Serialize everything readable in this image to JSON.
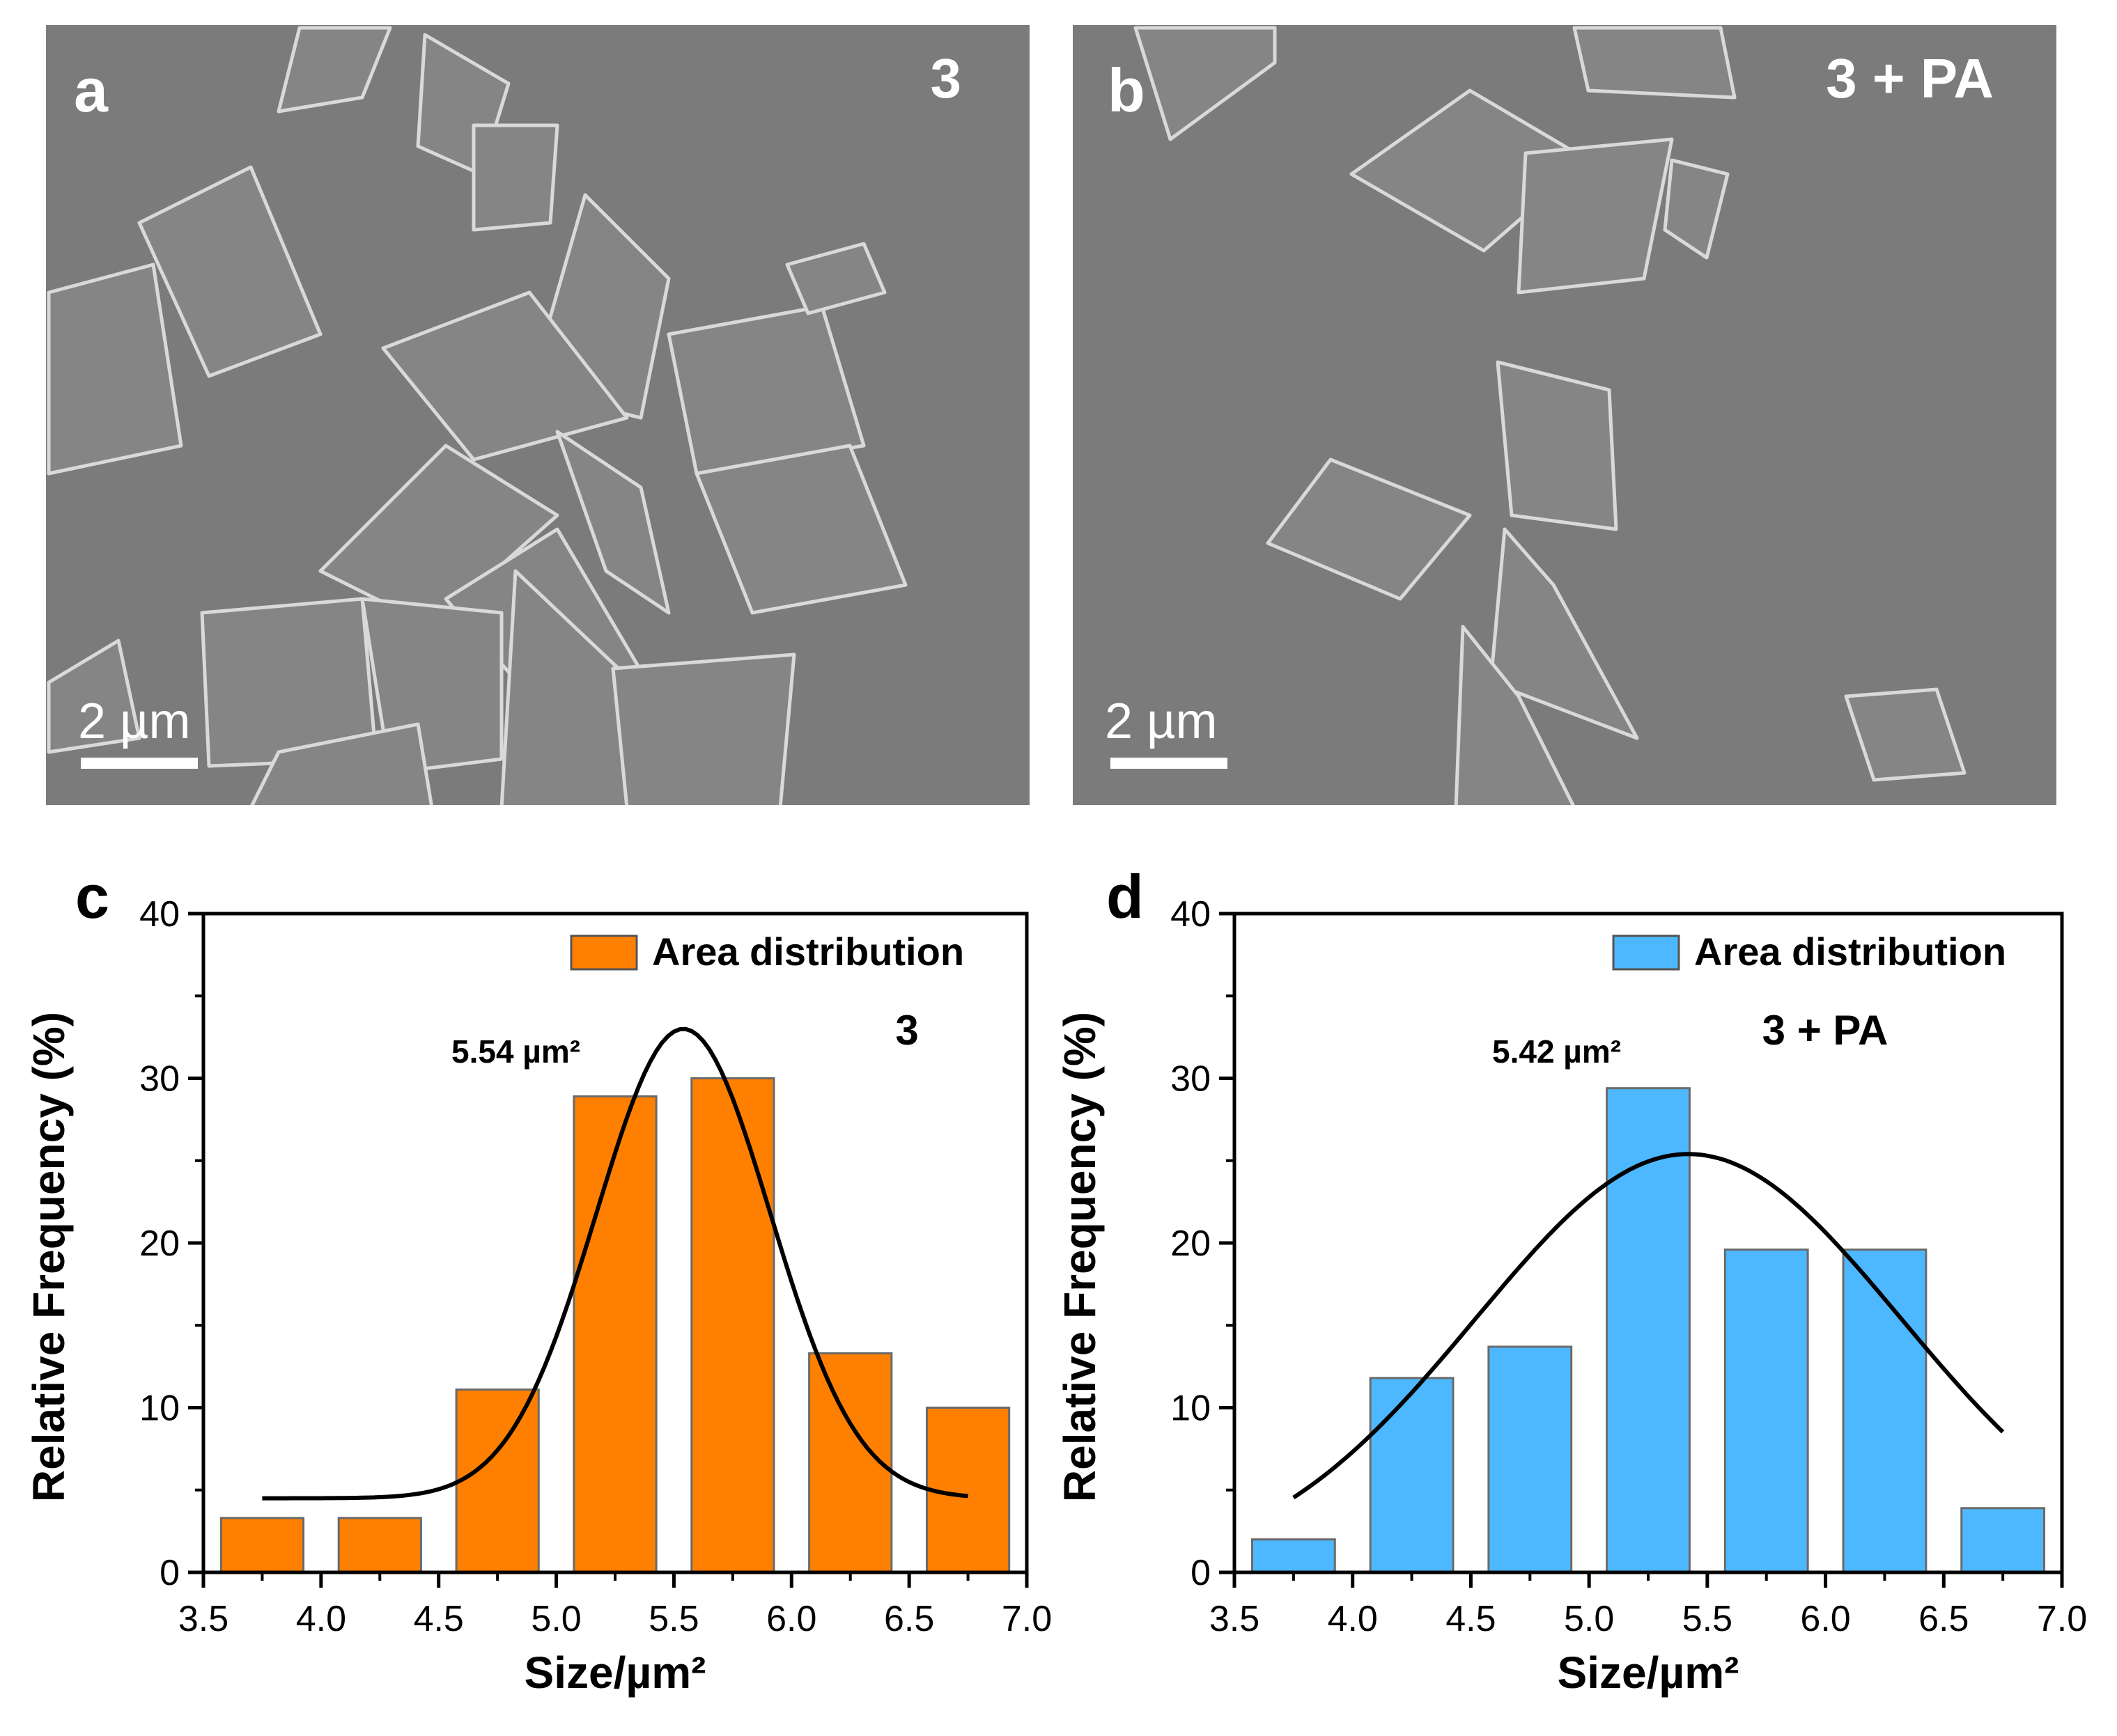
{
  "panels": {
    "a": {
      "letter": "a",
      "sample": "3",
      "scale_bar": "2 µm"
    },
    "b": {
      "letter": "b",
      "sample": "3 + PA",
      "scale_bar": "2 µm"
    }
  },
  "colors": {
    "sem_background": "#7b7b7b",
    "sem_crystal": "#858585",
    "sem_edge": "#d9d9d9",
    "bar_c": "#ff8000",
    "bar_d": "#4db8ff",
    "curve": "#000000"
  },
  "chart_data": [
    {
      "panel": "c",
      "type": "bar",
      "sample_label": "3",
      "legend": "Area distribution",
      "legend_position": "top-right",
      "xlabel": "Size/µm²",
      "ylabel": "Relative Frequency (%)",
      "xlim": [
        3.5,
        7.0
      ],
      "ylim": [
        0,
        40
      ],
      "xticks": [
        "3.5",
        "4.0",
        "4.5",
        "5.0",
        "5.5",
        "6.0",
        "6.5",
        "7.0"
      ],
      "yticks": [
        "0",
        "10",
        "20",
        "30",
        "40"
      ],
      "grid": false,
      "bin_width": 0.5,
      "bins": [
        3.75,
        4.25,
        4.75,
        5.25,
        5.75,
        6.25,
        6.75
      ],
      "values": [
        3.3,
        3.3,
        11.1,
        28.9,
        30.0,
        13.3,
        10.0
      ],
      "fit": {
        "type": "gaussian",
        "peak_label": "5.54 µm²",
        "center": 5.54,
        "amplitude": 28.5,
        "sigma": 0.37,
        "offset": 4.5,
        "x_range": [
          3.75,
          6.75
        ]
      }
    },
    {
      "panel": "d",
      "type": "bar",
      "sample_label": "3 + PA",
      "legend": "Area distribution",
      "legend_position": "top-right",
      "xlabel": "Size/µm²",
      "ylabel": "Relative Frequency (%)",
      "xlim": [
        3.5,
        7.0
      ],
      "ylim": [
        0,
        40
      ],
      "xticks": [
        "3.5",
        "4.0",
        "4.5",
        "5.0",
        "5.5",
        "6.0",
        "6.5",
        "7.0"
      ],
      "yticks": [
        "0",
        "10",
        "20",
        "30",
        "40"
      ],
      "grid": false,
      "bin_width": 0.5,
      "bins": [
        3.75,
        4.25,
        4.75,
        5.25,
        5.75,
        6.25,
        6.75
      ],
      "values": [
        2.0,
        11.8,
        13.7,
        29.4,
        19.6,
        19.6,
        3.9
      ],
      "fit": {
        "type": "gaussian",
        "peak_label": "5.42 µm²",
        "center": 5.42,
        "amplitude": 25.4,
        "sigma": 0.9,
        "offset": 0,
        "x_range": [
          3.75,
          6.75
        ]
      }
    }
  ]
}
